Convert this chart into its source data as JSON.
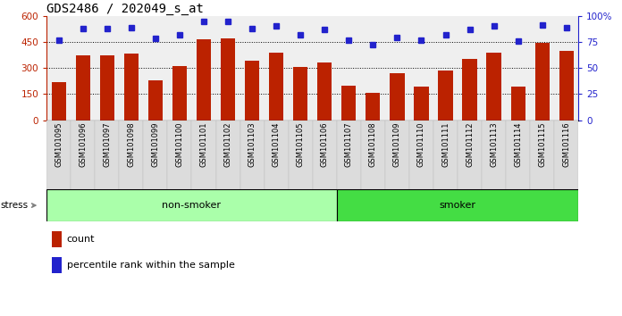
{
  "title": "GDS2486 / 202049_s_at",
  "samples": [
    "GSM101095",
    "GSM101096",
    "GSM101097",
    "GSM101098",
    "GSM101099",
    "GSM101100",
    "GSM101101",
    "GSM101102",
    "GSM101103",
    "GSM101104",
    "GSM101105",
    "GSM101106",
    "GSM101107",
    "GSM101108",
    "GSM101109",
    "GSM101110",
    "GSM101111",
    "GSM101112",
    "GSM101113",
    "GSM101114",
    "GSM101115",
    "GSM101116"
  ],
  "counts": [
    220,
    370,
    370,
    385,
    230,
    310,
    465,
    470,
    340,
    390,
    305,
    330,
    200,
    155,
    270,
    195,
    285,
    350,
    390,
    195,
    445,
    400
  ],
  "percentile_ranks": [
    77,
    88,
    88,
    89,
    78,
    82,
    95,
    95,
    88,
    90,
    82,
    87,
    77,
    72,
    79,
    77,
    82,
    87,
    90,
    76,
    91,
    89
  ],
  "ns_count": 12,
  "sm_count": 10,
  "group_color_ns": "#AAFFAA",
  "group_color_sm": "#44DD44",
  "bar_color": "#BB2200",
  "dot_color": "#2222CC",
  "ylim_left": [
    0,
    600
  ],
  "ylim_right": [
    0,
    100
  ],
  "yticks_left": [
    0,
    150,
    300,
    450,
    600
  ],
  "yticks_right": [
    0,
    25,
    50,
    75,
    100
  ],
  "ytick_labels_right": [
    "0",
    "25",
    "50",
    "75",
    "100%"
  ],
  "grid_values": [
    150,
    300,
    450
  ],
  "title_fontsize": 10,
  "axis_tick_color_left": "#BB2200",
  "axis_tick_color_right": "#2222CC",
  "stress_label": "stress",
  "legend_count_label": "count",
  "legend_pct_label": "percentile rank within the sample",
  "bg_color": "#EFEFEF"
}
